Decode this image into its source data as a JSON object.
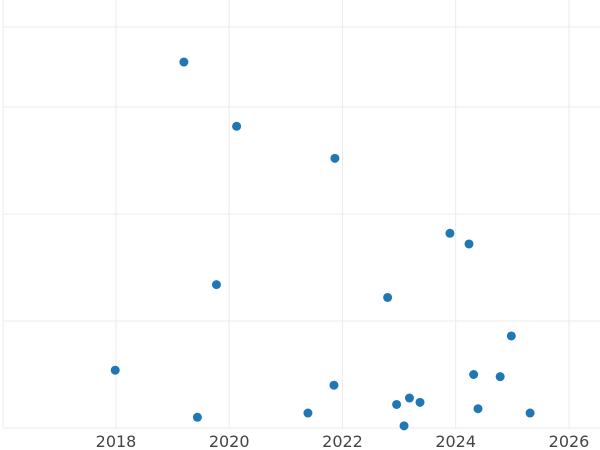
{
  "chart_data": {
    "type": "scatter",
    "title": "",
    "xlabel": "",
    "ylabel": "",
    "x_axis": "date",
    "xlim": [
      "2016-01-01",
      "2026-06-01"
    ],
    "ylim": [
      0,
      100
    ],
    "x_ticks": [
      "2018",
      "2020",
      "2022",
      "2024",
      "2026"
    ],
    "y_grid_values": [
      0,
      25,
      50,
      75
    ],
    "grid": true,
    "marker_color": "#1f77b4",
    "points": [
      {
        "x": "2017-12-27",
        "y": 13.5
      },
      {
        "x": "2019-03-15",
        "y": 85.5
      },
      {
        "x": "2019-06-10",
        "y": 2.5
      },
      {
        "x": "2019-10-11",
        "y": 33.5
      },
      {
        "x": "2020-02-18",
        "y": 70.5
      },
      {
        "x": "2021-05-23",
        "y": 3.5
      },
      {
        "x": "2021-11-07",
        "y": 10.0
      },
      {
        "x": "2021-11-13",
        "y": 63.0
      },
      {
        "x": "2022-10-19",
        "y": 30.5
      },
      {
        "x": "2022-12-16",
        "y": 5.5
      },
      {
        "x": "2023-02-02",
        "y": 0.5
      },
      {
        "x": "2023-03-09",
        "y": 7.0
      },
      {
        "x": "2023-05-16",
        "y": 6.0
      },
      {
        "x": "2023-11-25",
        "y": 45.5
      },
      {
        "x": "2024-03-27",
        "y": 43.0
      },
      {
        "x": "2024-04-26",
        "y": 12.5
      },
      {
        "x": "2024-05-24",
        "y": 4.5
      },
      {
        "x": "2024-10-14",
        "y": 12.0
      },
      {
        "x": "2024-12-25",
        "y": 21.5
      },
      {
        "x": "2025-04-25",
        "y": 3.5
      }
    ]
  }
}
